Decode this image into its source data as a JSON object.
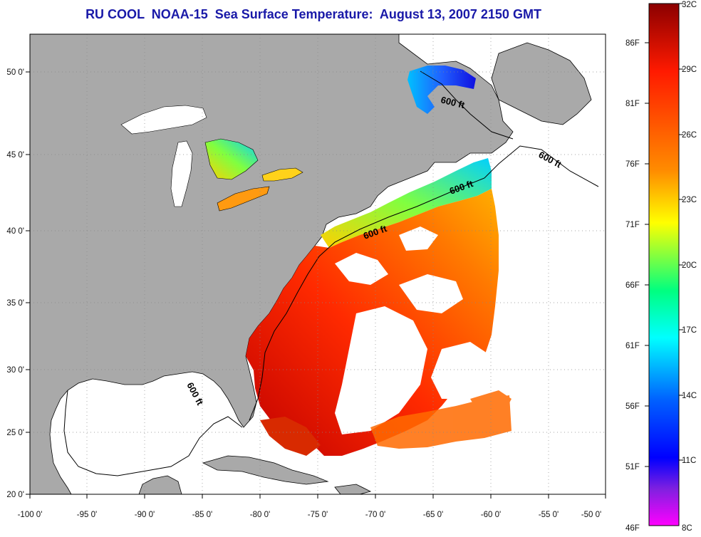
{
  "title": "RU COOL  NOAA-15  Sea Surface Temperature:  August 13, 2007 2150 GMT",
  "map": {
    "lon_range": [
      -100,
      -50
    ],
    "lat_range": [
      20,
      52.5
    ],
    "lon_ticks": [
      "-100 0'",
      "-95 0'",
      "-90 0'",
      "-85 0'",
      "-80 0'",
      "-75 0'",
      "-70 0'",
      "-65 0'",
      "-60 0'",
      "-55 0'",
      "-50 0'"
    ],
    "lat_ticks": [
      "20 0'",
      "25 0'",
      "30 0'",
      "35 0'",
      "40 0'",
      "45 0'",
      "50 0'"
    ],
    "contour_labels": [
      "600 ft",
      "600 ft",
      "600 ft",
      "600 ft",
      "600 ft"
    ],
    "land_color": "#a9a9a9",
    "no_data_color": "#ffffff"
  },
  "colorbar": {
    "fahrenheit_labels": [
      "86F",
      "81F",
      "76F",
      "71F",
      "66F",
      "61F",
      "56F",
      "51F",
      "46F"
    ],
    "celsius_labels": [
      "32C",
      "29C",
      "26C",
      "23C",
      "20C",
      "17C",
      "14C",
      "11C",
      "8C"
    ],
    "colors": [
      "#8b0000",
      "#ff1a00",
      "#ff8c00",
      "#ffff00",
      "#00ff80",
      "#00ffff",
      "#0060ff",
      "#0000ff",
      "#8020e0",
      "#ff00ff"
    ]
  }
}
